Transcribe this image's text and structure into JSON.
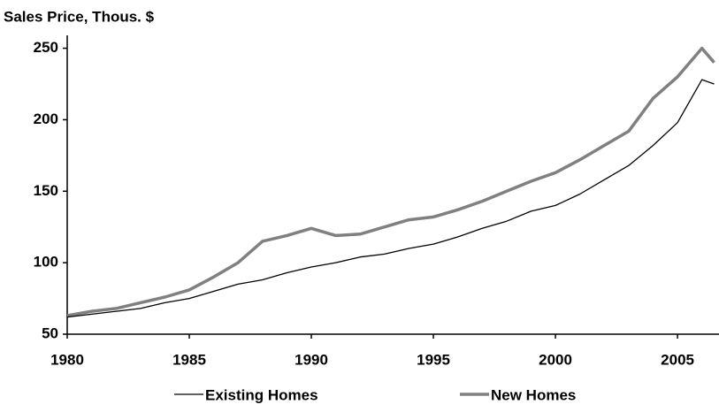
{
  "chart_data": {
    "type": "line",
    "title": "Sales Price, Thous. $",
    "x": [
      1980,
      1981,
      1982,
      1983,
      1984,
      1985,
      1986,
      1987,
      1988,
      1989,
      1990,
      1991,
      1992,
      1993,
      1994,
      1995,
      1996,
      1997,
      1998,
      1999,
      2000,
      2001,
      2002,
      2003,
      2004,
      2005,
      2006,
      2006.5
    ],
    "series": [
      {
        "name": "Existing Homes",
        "color": "#000000",
        "values": [
          62,
          64,
          66,
          68,
          72,
          75,
          80,
          85,
          88,
          93,
          97,
          100,
          104,
          106,
          110,
          113,
          118,
          124,
          129,
          136,
          140,
          148,
          158,
          168,
          182,
          198,
          228,
          225
        ]
      },
      {
        "name": "New Homes",
        "color": "#808080",
        "values": [
          63,
          66,
          68,
          72,
          76,
          81,
          90,
          100,
          115,
          119,
          124,
          119,
          120,
          125,
          130,
          132,
          137,
          143,
          150,
          157,
          163,
          172,
          182,
          192,
          215,
          230,
          250,
          240
        ]
      }
    ],
    "xlim": [
      1980,
      2006.7
    ],
    "xticks": [
      1980,
      1985,
      1990,
      1995,
      2000,
      2005
    ],
    "ylim": [
      50,
      259
    ],
    "yticks": [
      50,
      100,
      150,
      200,
      250
    ],
    "legend": "bottom"
  }
}
